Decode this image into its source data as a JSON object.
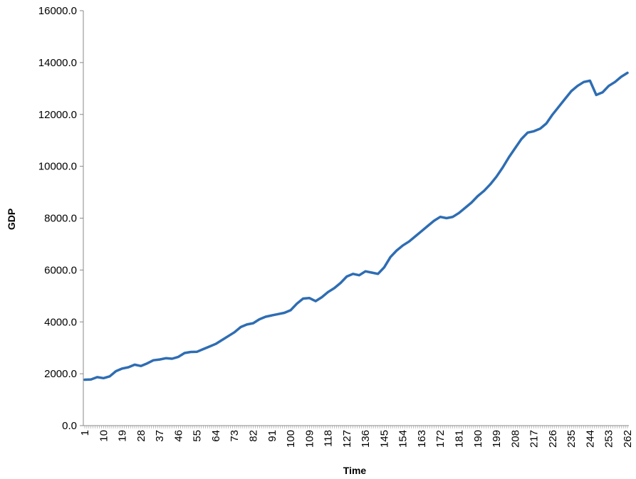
{
  "chart_data": {
    "type": "line",
    "title": "",
    "xlabel": "Time",
    "ylabel": "GDP",
    "ylim": [
      0,
      16000
    ],
    "xlim": [
      1,
      262
    ],
    "y_ticks": [
      "0.0",
      "2000.0",
      "4000.0",
      "6000.0",
      "8000.0",
      "10000.0",
      "12000.0",
      "14000.0",
      "16000.0"
    ],
    "x_ticks": [
      "1",
      "10",
      "19",
      "28",
      "37",
      "46",
      "55",
      "64",
      "73",
      "82",
      "91",
      "100",
      "109",
      "118",
      "127",
      "136",
      "145",
      "154",
      "163",
      "172",
      "181",
      "190",
      "199",
      "208",
      "217",
      "226",
      "235",
      "244",
      "253",
      "262"
    ],
    "grid": false,
    "legend": "none",
    "line_color": "#2e6db3",
    "series": [
      {
        "x": [
          1,
          4,
          7,
          10,
          13,
          16,
          19,
          22,
          25,
          28,
          31,
          34,
          37,
          40,
          43,
          46,
          49,
          52,
          55,
          58,
          61,
          64,
          67,
          70,
          73,
          76,
          79,
          82,
          85,
          88,
          91,
          94,
          97,
          100,
          103,
          106,
          109,
          112,
          115,
          118,
          121,
          124,
          127,
          130,
          133,
          136,
          139,
          142,
          145,
          148,
          151,
          154,
          157,
          160,
          163,
          166,
          169,
          172,
          175,
          178,
          181,
          184,
          187,
          190,
          193,
          196,
          199,
          202,
          205,
          208,
          211,
          214,
          217,
          220,
          223,
          226,
          229,
          232,
          235,
          238,
          241,
          244,
          247,
          250,
          253,
          256,
          259,
          262
        ],
        "values": [
          1770,
          1780,
          1870,
          1830,
          1900,
          2100,
          2200,
          2250,
          2350,
          2300,
          2400,
          2520,
          2550,
          2600,
          2580,
          2650,
          2800,
          2840,
          2850,
          2950,
          3050,
          3150,
          3300,
          3450,
          3600,
          3800,
          3900,
          3950,
          4100,
          4200,
          4250,
          4300,
          4350,
          4450,
          4700,
          4900,
          4920,
          4800,
          4950,
          5150,
          5300,
          5500,
          5750,
          5850,
          5800,
          5950,
          5900,
          5850,
          6100,
          6500,
          6750,
          6950,
          7100,
          7300,
          7500,
          7700,
          7900,
          8050,
          8000,
          8050,
          8200,
          8400,
          8600,
          8850,
          9050,
          9300,
          9600,
          9950,
          10350,
          10700,
          11050,
          11300,
          11350,
          11450,
          11650,
          12000,
          12300,
          12600,
          12900,
          13100,
          13250,
          13300,
          12750,
          12850,
          13100,
          13250,
          13450,
          13600
        ]
      }
    ]
  }
}
